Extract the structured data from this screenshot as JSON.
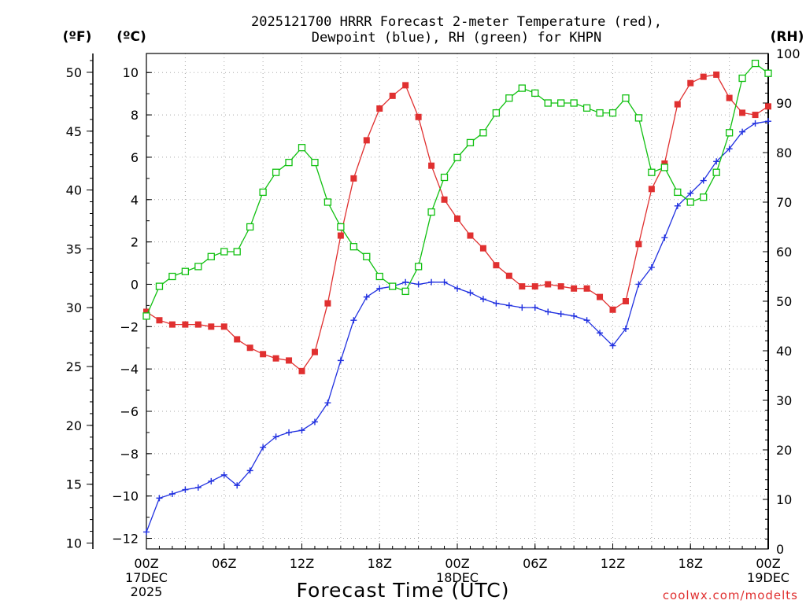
{
  "chart_data": {
    "type": "line",
    "title_lines": [
      "2025121700 HRRR Forecast 2-meter Temperature (red),",
      "Dewpoint (blue), RH (green) for KHPN"
    ],
    "unit_labels": {
      "fahrenheit": "(ºF)",
      "celsius": "(ºC)",
      "rh": "(RH)"
    },
    "xlabel": "Forecast Time (UTC)",
    "credit": "coolwx.com/modelts",
    "x_range": [
      0,
      48
    ],
    "x_tick_values": [
      0,
      6,
      12,
      18,
      24,
      30,
      36,
      42,
      48
    ],
    "x_ticks": [
      [
        "00Z",
        "17DEC",
        "2025"
      ],
      [
        "06Z"
      ],
      [
        "12Z"
      ],
      [
        "18Z"
      ],
      [
        "00Z",
        "18DEC"
      ],
      [
        "06Z"
      ],
      [
        "12Z"
      ],
      [
        "18Z"
      ],
      [
        "00Z",
        "19DEC"
      ]
    ],
    "celsius_axis": {
      "range": [
        -12.5,
        10.9
      ],
      "ticks": [
        "-12",
        "-10",
        "-8",
        "-6",
        "-4",
        "-2",
        "0",
        "2",
        "4",
        "6",
        "8",
        "10"
      ]
    },
    "fahrenheit_axis": {
      "range": [
        9.5,
        51.6
      ],
      "ticks": [
        "10",
        "15",
        "20",
        "25",
        "30",
        "35",
        "40",
        "45",
        "50"
      ]
    },
    "rh_axis": {
      "range": [
        0,
        100
      ],
      "ticks": [
        "0",
        "10",
        "20",
        "30",
        "40",
        "50",
        "60",
        "70",
        "80",
        "90",
        "100"
      ]
    },
    "grid": true,
    "colors": {
      "temperature": "#e03030",
      "dewpoint": "#2030e0",
      "rh": "#10c010"
    },
    "series": [
      {
        "key": "temperature",
        "axis": "celsius",
        "marker": "filled-square",
        "values": [
          -1.3,
          -1.7,
          -1.9,
          -1.9,
          -1.9,
          -2.0,
          -2.0,
          -2.6,
          -3.0,
          -3.3,
          -3.5,
          -3.6,
          -4.1,
          -3.2,
          -0.9,
          2.3,
          5.0,
          6.8,
          8.3,
          8.9,
          9.4,
          7.9,
          5.6,
          4.0,
          3.1,
          2.3,
          1.7,
          0.9,
          0.4,
          -0.1,
          -0.1,
          0.0,
          -0.1,
          -0.2,
          -0.2,
          -0.6,
          -1.2,
          -0.8,
          1.9,
          4.5,
          5.7,
          8.5,
          9.5,
          9.8,
          9.9,
          8.8,
          8.1,
          8.0,
          8.4
        ]
      },
      {
        "key": "dewpoint",
        "axis": "celsius",
        "marker": "plus",
        "values": [
          -11.7,
          -10.1,
          -9.9,
          -9.7,
          -9.6,
          -9.3,
          -9.0,
          -9.5,
          -8.8,
          -7.7,
          -7.2,
          -7.0,
          -6.9,
          -6.5,
          -5.6,
          -3.6,
          -1.7,
          -0.6,
          -0.2,
          -0.1,
          0.1,
          0.0,
          0.1,
          0.1,
          -0.2,
          -0.4,
          -0.7,
          -0.9,
          -1.0,
          -1.1,
          -1.1,
          -1.3,
          -1.4,
          -1.5,
          -1.7,
          -2.3,
          -2.9,
          -2.1,
          0.0,
          0.8,
          2.2,
          3.7,
          4.3,
          4.9,
          5.8,
          6.4,
          7.2,
          7.6,
          7.7
        ]
      },
      {
        "key": "rh",
        "axis": "rh",
        "marker": "open-square",
        "values": [
          47,
          53,
          55,
          56,
          57,
          59,
          60,
          60,
          65,
          72,
          76,
          78,
          81,
          78,
          70,
          65,
          61,
          59,
          55,
          53,
          52,
          57,
          68,
          75,
          79,
          82,
          84,
          88,
          91,
          93,
          92,
          90,
          90,
          90,
          89,
          88,
          88,
          91,
          87,
          76,
          77,
          72,
          70,
          71,
          76,
          84,
          95,
          98,
          96
        ]
      }
    ]
  }
}
